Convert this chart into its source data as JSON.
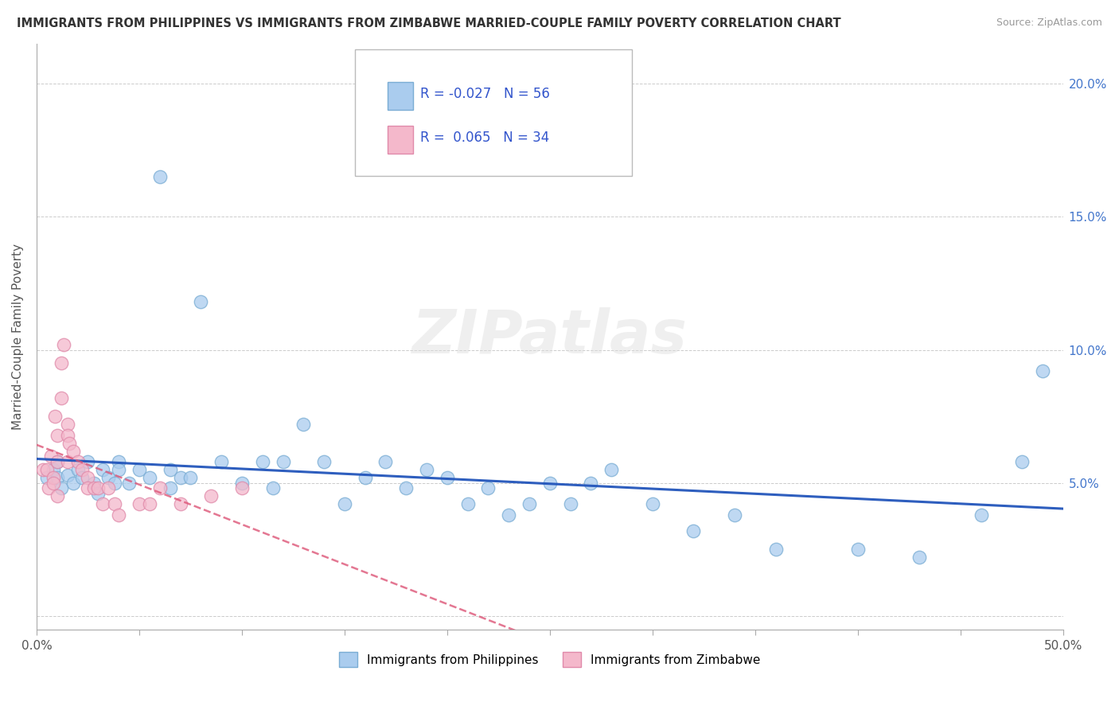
{
  "title": "IMMIGRANTS FROM PHILIPPINES VS IMMIGRANTS FROM ZIMBABWE MARRIED-COUPLE FAMILY POVERTY CORRELATION CHART",
  "source": "Source: ZipAtlas.com",
  "ylabel": "Married-Couple Family Poverty",
  "xlim": [
    0.0,
    0.5
  ],
  "ylim": [
    -0.005,
    0.215
  ],
  "philippines_color": "#aaccee",
  "philippines_edge": "#7aadd4",
  "zimbabwe_color": "#f4b8cb",
  "zimbabwe_edge": "#e08aaa",
  "R_philippines": -0.027,
  "N_philippines": 56,
  "R_zimbabwe": 0.065,
  "N_zimbabwe": 34,
  "trendline_color_philippines": "#2255bb",
  "trendline_color_zimbabwe": "#dd5577",
  "watermark": "ZIPatlas",
  "background_color": "#ffffff",
  "grid_color": "#cccccc",
  "philippines_x": [
    0.005,
    0.008,
    0.01,
    0.01,
    0.012,
    0.015,
    0.018,
    0.02,
    0.022,
    0.025,
    0.028,
    0.03,
    0.032,
    0.035,
    0.038,
    0.04,
    0.04,
    0.045,
    0.05,
    0.055,
    0.06,
    0.065,
    0.065,
    0.07,
    0.075,
    0.08,
    0.09,
    0.1,
    0.11,
    0.115,
    0.12,
    0.13,
    0.14,
    0.15,
    0.16,
    0.17,
    0.18,
    0.19,
    0.2,
    0.21,
    0.22,
    0.23,
    0.24,
    0.25,
    0.26,
    0.27,
    0.28,
    0.3,
    0.32,
    0.34,
    0.36,
    0.4,
    0.43,
    0.46,
    0.48,
    0.49
  ],
  "philippines_y": [
    0.052,
    0.055,
    0.052,
    0.058,
    0.048,
    0.053,
    0.05,
    0.055,
    0.052,
    0.058,
    0.05,
    0.046,
    0.055,
    0.052,
    0.05,
    0.058,
    0.055,
    0.05,
    0.055,
    0.052,
    0.165,
    0.055,
    0.048,
    0.052,
    0.052,
    0.118,
    0.058,
    0.05,
    0.058,
    0.048,
    0.058,
    0.072,
    0.058,
    0.042,
    0.052,
    0.058,
    0.048,
    0.055,
    0.052,
    0.042,
    0.048,
    0.038,
    0.042,
    0.05,
    0.042,
    0.05,
    0.055,
    0.042,
    0.032,
    0.038,
    0.025,
    0.025,
    0.022,
    0.038,
    0.058,
    0.092
  ],
  "zimbabwe_x": [
    0.003,
    0.005,
    0.006,
    0.007,
    0.008,
    0.008,
    0.009,
    0.01,
    0.01,
    0.01,
    0.012,
    0.012,
    0.013,
    0.015,
    0.015,
    0.015,
    0.016,
    0.018,
    0.02,
    0.022,
    0.025,
    0.025,
    0.028,
    0.03,
    0.032,
    0.035,
    0.038,
    0.04,
    0.05,
    0.055,
    0.06,
    0.07,
    0.085,
    0.1
  ],
  "zimbabwe_y": [
    0.055,
    0.055,
    0.048,
    0.06,
    0.052,
    0.05,
    0.075,
    0.068,
    0.058,
    0.045,
    0.082,
    0.095,
    0.102,
    0.072,
    0.068,
    0.058,
    0.065,
    0.062,
    0.058,
    0.055,
    0.052,
    0.048,
    0.048,
    0.048,
    0.042,
    0.048,
    0.042,
    0.038,
    0.042,
    0.042,
    0.048,
    0.042,
    0.045,
    0.048
  ]
}
